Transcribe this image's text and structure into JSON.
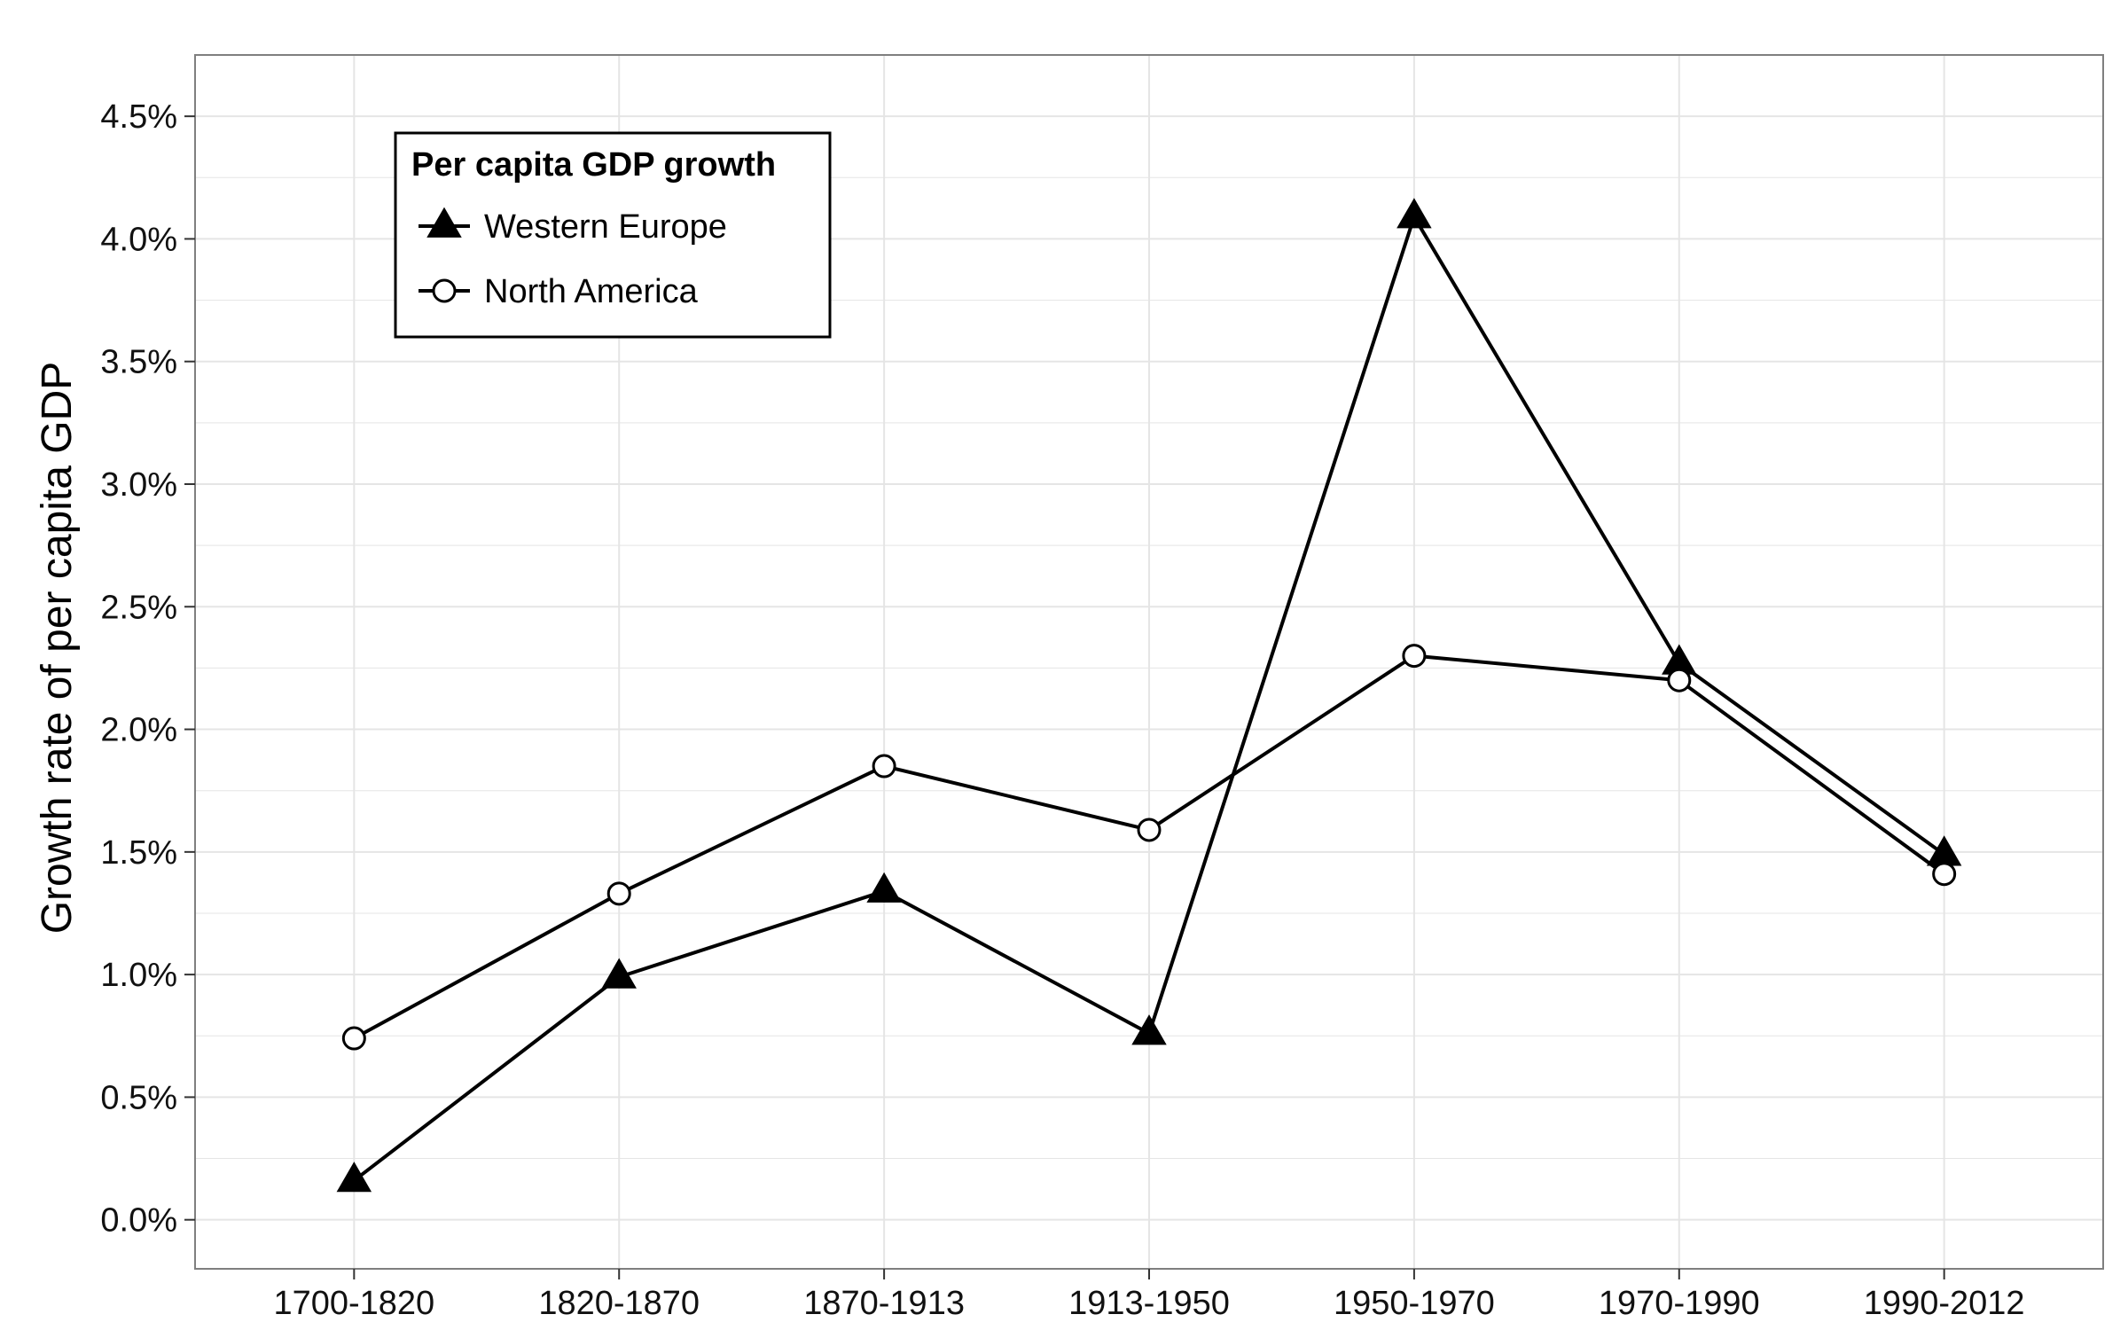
{
  "chart_data": {
    "type": "line",
    "title": "",
    "xlabel": "",
    "ylabel": "Growth rate of per capita GDP",
    "categories": [
      "1700-1820",
      "1820-1870",
      "1870-1913",
      "1913-1950",
      "1950-1970",
      "1970-1990",
      "1990-2012"
    ],
    "ylim": [
      -0.2,
      4.75
    ],
    "yticks": [
      0.0,
      0.5,
      1.0,
      1.5,
      2.0,
      2.5,
      3.0,
      3.5,
      4.0,
      4.5
    ],
    "ytick_labels": [
      "0.0%",
      "0.5%",
      "1.0%",
      "1.5%",
      "2.0%",
      "2.5%",
      "3.0%",
      "3.5%",
      "4.0%",
      "4.5%"
    ],
    "grid": true,
    "legend": {
      "title": "Per capita GDP growth",
      "placement": "top-left"
    },
    "series": [
      {
        "name": "Western Europe",
        "marker": "filled-triangle",
        "values": [
          0.16,
          0.99,
          1.34,
          0.76,
          4.09,
          2.27,
          1.49
        ]
      },
      {
        "name": "North America",
        "marker": "open-circle",
        "values": [
          0.74,
          1.33,
          1.85,
          1.59,
          2.3,
          2.2,
          1.41
        ]
      }
    ],
    "colors": {
      "line": "#000000",
      "grid": "#e5e5e5",
      "panel_border": "#7f7f7f"
    }
  }
}
